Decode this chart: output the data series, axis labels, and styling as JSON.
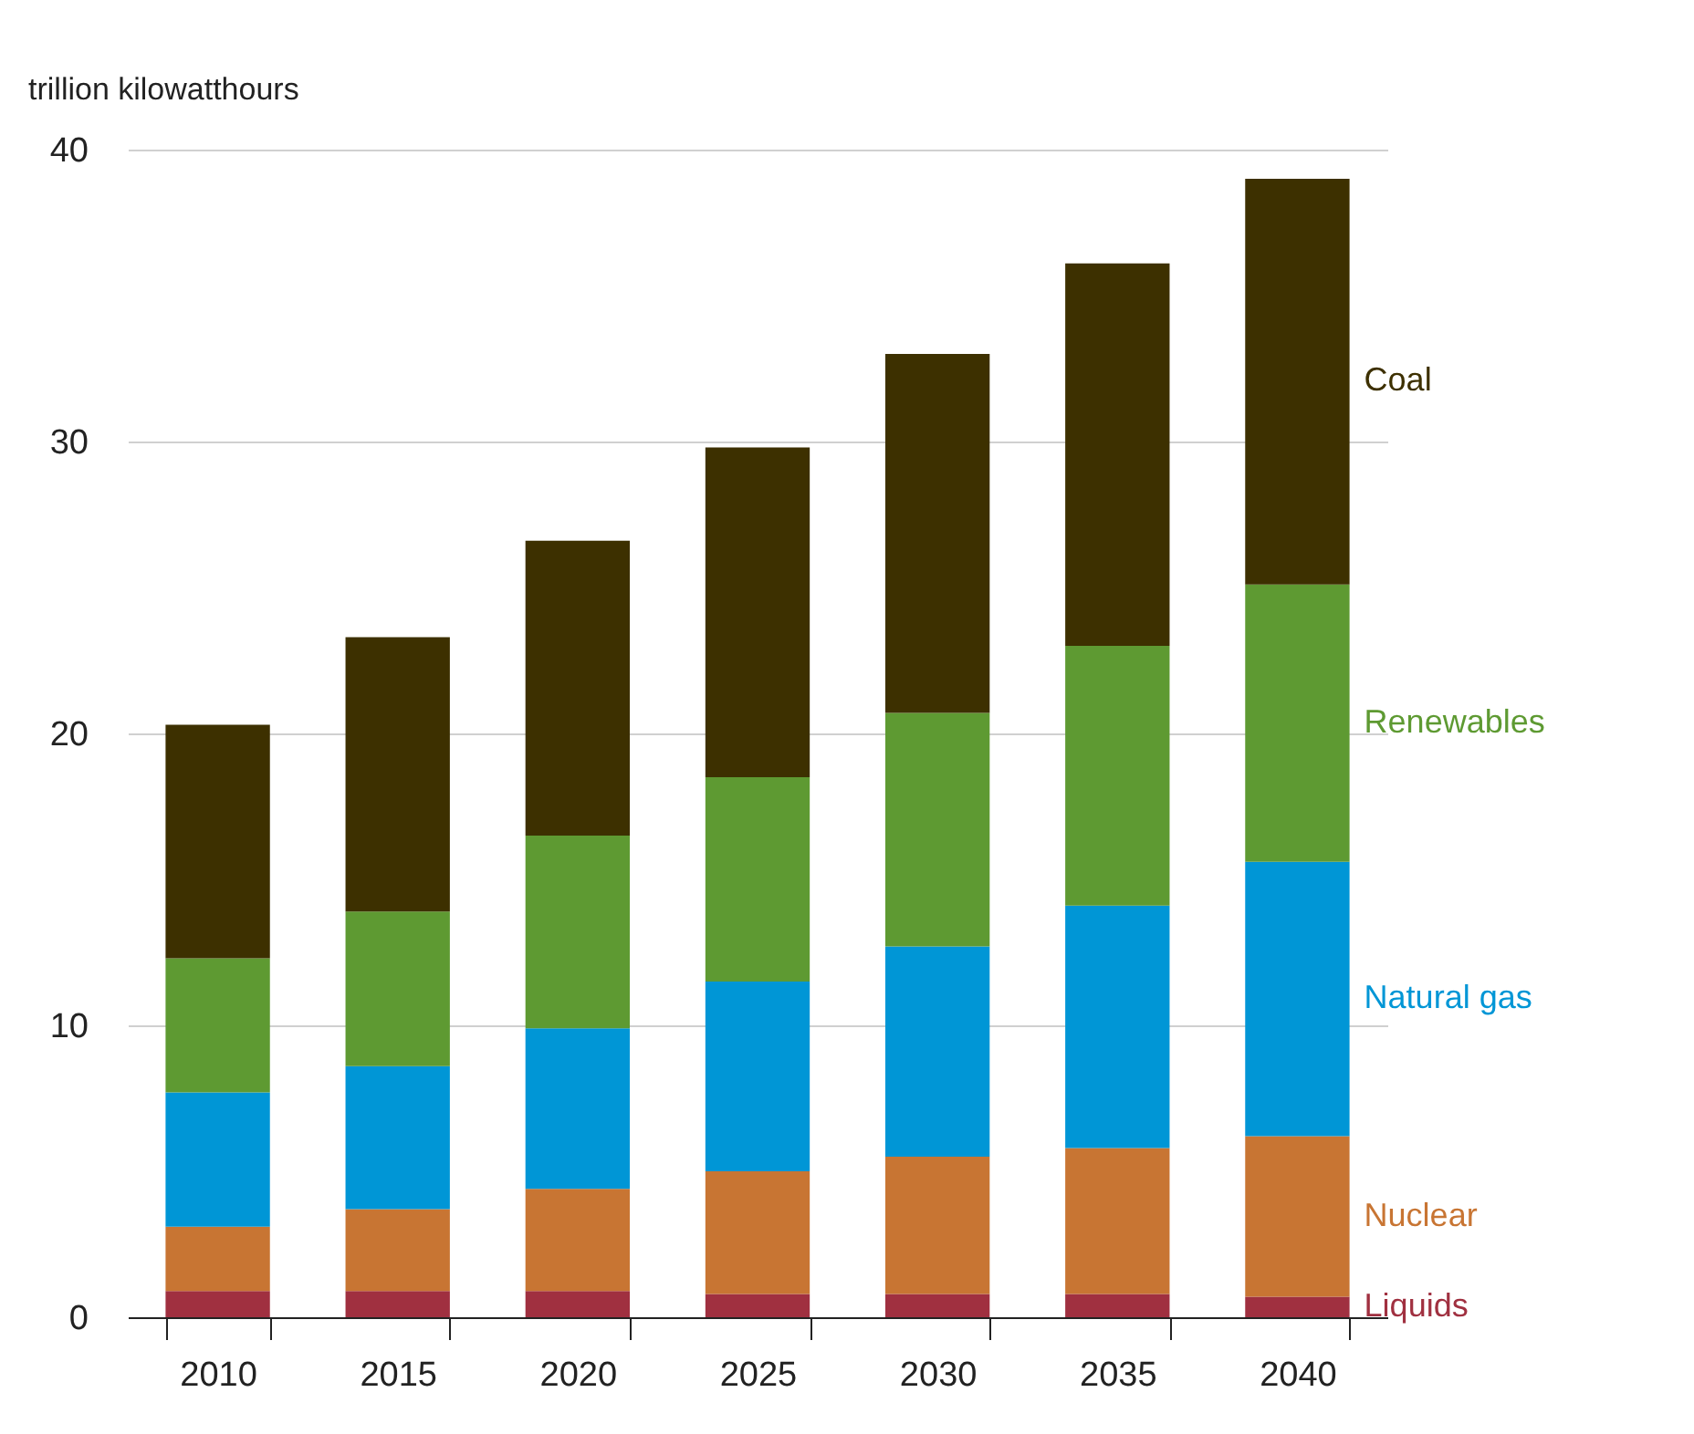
{
  "chart_data": {
    "type": "bar",
    "stacked": true,
    "ylabel": "trillion kilowatthours",
    "categories": [
      "2010",
      "2015",
      "2020",
      "2025",
      "2030",
      "2035",
      "2040"
    ],
    "series": [
      {
        "name": "Liquids",
        "color": "#a03040",
        "values": [
          0.9,
          0.9,
          0.9,
          0.8,
          0.8,
          0.8,
          0.7
        ]
      },
      {
        "name": "Nuclear",
        "color": "#c87533",
        "values": [
          2.2,
          2.8,
          3.5,
          4.2,
          4.7,
          5.0,
          5.5
        ]
      },
      {
        "name": "Natural gas",
        "color": "#0096d6",
        "values": [
          4.6,
          4.9,
          5.5,
          6.5,
          7.2,
          8.3,
          9.4
        ]
      },
      {
        "name": "Renewables",
        "color": "#5e9a32",
        "values": [
          4.6,
          5.3,
          6.6,
          7.0,
          8.0,
          8.9,
          9.5
        ]
      },
      {
        "name": "Coal",
        "color": "#3d3000",
        "values": [
          8.0,
          9.4,
          10.1,
          11.3,
          12.3,
          13.1,
          13.9
        ]
      }
    ],
    "ylim": [
      0,
      40
    ],
    "yticks": [
      0,
      10,
      20,
      30,
      40
    ],
    "grid": "y"
  }
}
